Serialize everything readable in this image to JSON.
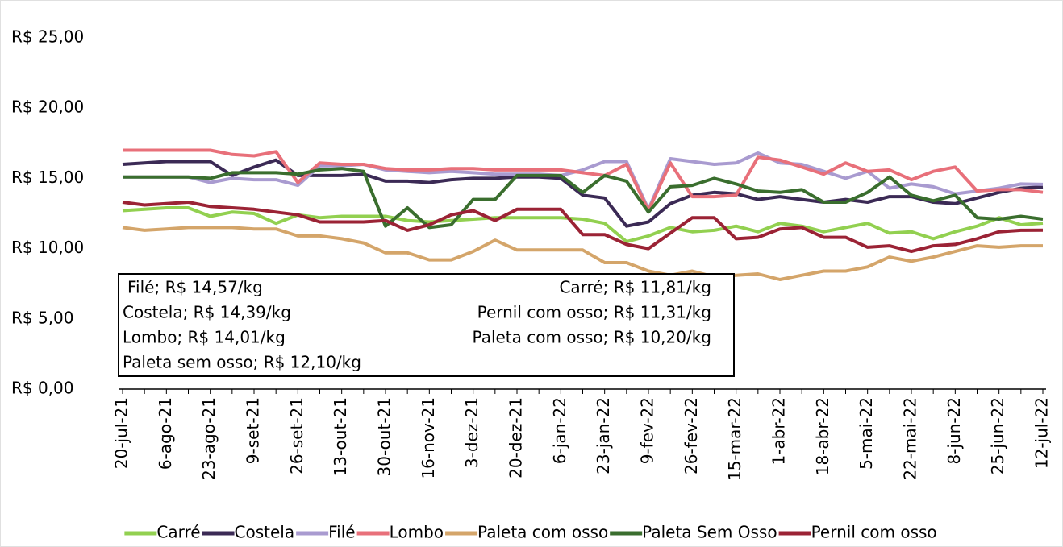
{
  "chart_data": {
    "type": "line",
    "categories": [
      "20-jul-21",
      null,
      "6-ago-21",
      null,
      "23-ago-21",
      null,
      "9-set-21",
      null,
      "26-set-21",
      null,
      "13-out-21",
      null,
      "30-out-21",
      null,
      "16-nov-21",
      null,
      "3-dez-21",
      null,
      "20-dez-21",
      null,
      "6-jan-22",
      null,
      "23-jan-22",
      null,
      "9-fev-22",
      null,
      "26-fev-22",
      null,
      "15-mar-22",
      null,
      "1-abr-22",
      null,
      "18-abr-22",
      null,
      "5-mai-22",
      null,
      "22-mai-22",
      null,
      "8-jun-22",
      null,
      "25-jun-22",
      null,
      "12-jul-22"
    ],
    "ylim": [
      0,
      25
    ],
    "yticks": [
      {
        "value": 0,
        "label": "R$ 0,00"
      },
      {
        "value": 5,
        "label": "R$ 5,00"
      },
      {
        "value": 10,
        "label": "R$ 10,00"
      },
      {
        "value": 15,
        "label": "R$ 15,00"
      },
      {
        "value": 20,
        "label": "R$ 20,00"
      },
      {
        "value": 25,
        "label": "R$ 25,00"
      }
    ],
    "grid": false,
    "legend": "bottom",
    "annotations": {
      "left": [
        "Filé; R$ 14,57/kg",
        "Costela; R$ 14,39/kg",
        "Lombo; R$ 14,01/kg",
        "Paleta sem osso; R$ 12,10/kg"
      ],
      "right": [
        "Carré; R$ 11,81/kg",
        "Pernil com osso; R$ 11,31/kg",
        "Paleta com osso; R$ 10,20/kg"
      ]
    },
    "series": [
      {
        "name": "Carré",
        "color": "#92d050",
        "values": [
          12.7,
          12.8,
          12.9,
          12.9,
          12.3,
          12.6,
          12.5,
          11.8,
          12.4,
          12.2,
          12.3,
          12.3,
          12.3,
          12.0,
          11.9,
          12.0,
          12.1,
          12.2,
          12.2,
          12.2,
          12.2,
          12.1,
          11.8,
          10.5,
          10.9,
          11.5,
          11.2,
          11.3,
          11.6,
          11.2,
          11.8,
          11.6,
          11.2,
          11.5,
          11.8,
          11.1,
          11.2,
          10.7,
          11.2,
          11.6,
          12.2,
          11.7,
          11.81
        ]
      },
      {
        "name": "Costela",
        "color": "#3b2a55",
        "values": [
          16.0,
          16.1,
          16.2,
          16.2,
          16.2,
          15.2,
          15.8,
          16.3,
          15.2,
          15.2,
          15.2,
          15.3,
          14.8,
          14.8,
          14.7,
          14.9,
          15.0,
          15.0,
          15.1,
          15.1,
          15.0,
          13.8,
          13.6,
          11.6,
          11.9,
          13.2,
          13.8,
          14.0,
          13.9,
          13.5,
          13.7,
          13.5,
          13.3,
          13.5,
          13.3,
          13.7,
          13.7,
          13.3,
          13.2,
          13.6,
          14.0,
          14.3,
          14.39
        ]
      },
      {
        "name": "Filé",
        "color": "#a99bd0",
        "values": [
          15.1,
          15.1,
          15.1,
          15.1,
          14.7,
          15.0,
          14.9,
          14.9,
          14.5,
          15.9,
          15.9,
          16.0,
          15.6,
          15.5,
          15.4,
          15.5,
          15.4,
          15.3,
          15.3,
          15.3,
          15.2,
          15.6,
          16.2,
          16.2,
          12.8,
          16.4,
          16.2,
          16.0,
          16.1,
          16.8,
          16.1,
          16.0,
          15.5,
          15.0,
          15.5,
          14.3,
          14.6,
          14.4,
          13.9,
          14.1,
          14.3,
          14.6,
          14.57
        ]
      },
      {
        "name": "Lombo",
        "color": "#e8707a",
        "values": [
          17.0,
          17.0,
          17.0,
          17.0,
          17.0,
          16.7,
          16.6,
          16.9,
          14.7,
          16.1,
          16.0,
          16.0,
          15.7,
          15.6,
          15.6,
          15.7,
          15.7,
          15.6,
          15.6,
          15.6,
          15.6,
          15.4,
          15.2,
          16.0,
          12.7,
          16.1,
          13.7,
          13.7,
          13.8,
          16.5,
          16.3,
          15.8,
          15.3,
          16.1,
          15.5,
          15.6,
          14.9,
          15.5,
          15.8,
          14.1,
          14.2,
          14.2,
          14.01
        ]
      },
      {
        "name": "Paleta com osso",
        "color": "#d4a56a",
        "values": [
          11.5,
          11.3,
          11.4,
          11.5,
          11.5,
          11.5,
          11.4,
          11.4,
          10.9,
          10.9,
          10.7,
          10.4,
          9.7,
          9.7,
          9.2,
          9.2,
          9.8,
          10.6,
          9.9,
          9.9,
          9.9,
          9.9,
          9.0,
          9.0,
          8.4,
          8.1,
          8.4,
          8.0,
          8.1,
          8.2,
          7.8,
          8.1,
          8.4,
          8.4,
          8.7,
          9.4,
          9.1,
          9.4,
          9.8,
          10.2,
          10.1,
          10.2,
          10.2
        ]
      },
      {
        "name": "Paleta Sem Osso",
        "color": "#3a6e2e",
        "values": [
          15.1,
          15.1,
          15.1,
          15.1,
          15.0,
          15.4,
          15.4,
          15.4,
          15.3,
          15.6,
          15.7,
          15.5,
          11.6,
          12.9,
          11.5,
          11.7,
          13.5,
          13.5,
          15.2,
          15.2,
          15.2,
          14.0,
          15.2,
          14.8,
          12.6,
          14.4,
          14.5,
          15.0,
          14.6,
          14.1,
          14.0,
          14.2,
          13.3,
          13.3,
          14.0,
          15.1,
          13.8,
          13.4,
          13.8,
          12.2,
          12.1,
          12.3,
          12.1
        ]
      },
      {
        "name": "Pernil com osso",
        "color": "#9b2335",
        "values": [
          13.3,
          13.1,
          13.2,
          13.3,
          13.0,
          12.9,
          12.8,
          12.6,
          12.4,
          11.9,
          11.9,
          11.9,
          12.0,
          11.3,
          11.7,
          12.4,
          12.7,
          12.0,
          12.8,
          12.8,
          12.8,
          11.0,
          11.0,
          10.3,
          10.0,
          11.1,
          12.2,
          12.2,
          10.7,
          10.8,
          11.4,
          11.5,
          10.8,
          10.8,
          10.1,
          10.2,
          9.8,
          10.2,
          10.3,
          10.7,
          11.2,
          11.3,
          11.31
        ]
      }
    ]
  }
}
